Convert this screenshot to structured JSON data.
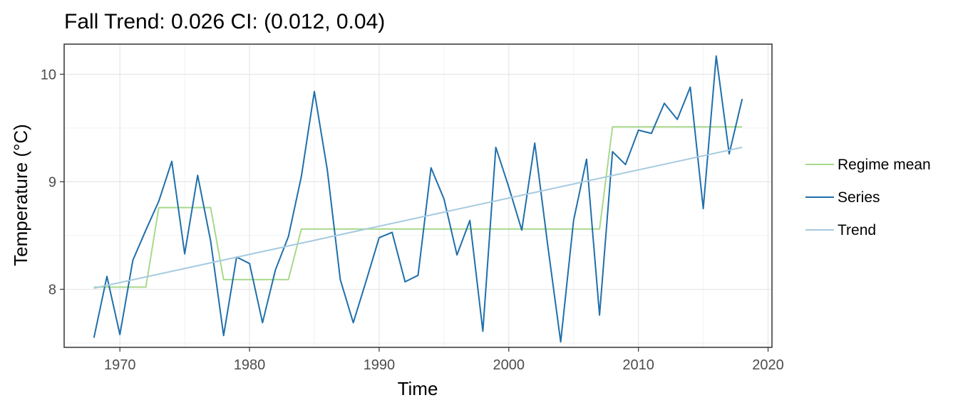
{
  "chart_data": {
    "type": "line",
    "title": "Fall Trend: 0.026 CI: (0.012, 0.04)",
    "xlabel": "Time",
    "ylabel": "Temperature (°C)",
    "xlim": [
      1965.7,
      2020.3
    ],
    "ylim": [
      7.46,
      10.28
    ],
    "x_ticks": [
      1970,
      1980,
      1990,
      2000,
      2010,
      2020
    ],
    "y_ticks": [
      8,
      9,
      10
    ],
    "grid": true,
    "legend_position": "right",
    "series": [
      {
        "name": "Regime mean",
        "color": "#a8d98a",
        "x": [
          1968,
          1972,
          1973,
          1977,
          1978,
          1983,
          1984,
          2007,
          2008,
          2018
        ],
        "y": [
          8.02,
          8.02,
          8.76,
          8.76,
          8.09,
          8.09,
          8.56,
          8.56,
          9.51,
          9.51
        ]
      },
      {
        "name": "Series",
        "color": "#1f6fab",
        "x": [
          1968,
          1969,
          1970,
          1971,
          1972,
          1973,
          1974,
          1975,
          1976,
          1977,
          1978,
          1979,
          1980,
          1981,
          1982,
          1983,
          1984,
          1985,
          1986,
          1987,
          1988,
          1989,
          1990,
          1991,
          1992,
          1993,
          1994,
          1995,
          1996,
          1997,
          1998,
          1999,
          2000,
          2001,
          2002,
          2003,
          2004,
          2005,
          2006,
          2007,
          2008,
          2009,
          2010,
          2011,
          2012,
          2013,
          2014,
          2015,
          2016,
          2017,
          2018
        ],
        "y": [
          7.55,
          8.12,
          7.58,
          8.27,
          8.55,
          8.82,
          9.19,
          8.33,
          9.06,
          8.45,
          7.57,
          8.3,
          8.24,
          7.69,
          8.18,
          8.49,
          9.05,
          9.84,
          9.11,
          8.09,
          7.69,
          8.08,
          8.48,
          8.53,
          8.07,
          8.13,
          9.13,
          8.84,
          8.32,
          8.64,
          7.61,
          9.32,
          8.95,
          8.55,
          9.36,
          8.41,
          7.51,
          8.64,
          9.21,
          7.76,
          9.28,
          9.16,
          9.48,
          9.45,
          9.73,
          9.58,
          9.88,
          8.75,
          10.17,
          9.26,
          9.77
        ]
      },
      {
        "name": "Trend",
        "color": "#a6cbe0",
        "x": [
          1968,
          2018
        ],
        "y": [
          8.01,
          9.32
        ]
      }
    ]
  }
}
